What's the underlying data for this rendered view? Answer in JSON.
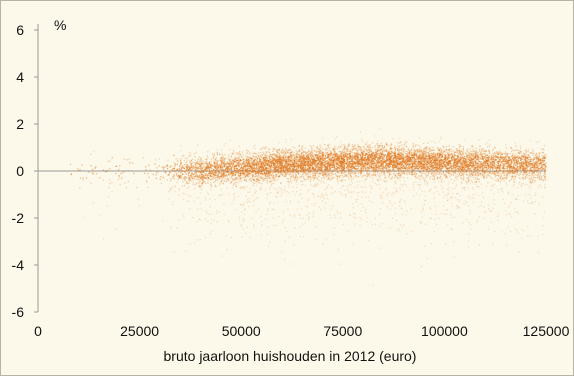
{
  "chart_data": {
    "type": "scatter",
    "title": "",
    "xlabel": "bruto jaarloon huishouden in 2012 (euro)",
    "ylabel": "%",
    "xlim": [
      0,
      125000
    ],
    "ylim": [
      -6,
      6
    ],
    "xticks": [
      0,
      25000,
      50000,
      75000,
      100000,
      125000
    ],
    "yticks": [
      6,
      4,
      2,
      0,
      -2,
      -4,
      -6
    ],
    "grid": false,
    "reference_line_y": 0,
    "series": [
      {
        "color": "#e07a22",
        "point_count_approx": 9000,
        "x_range": [
          8000,
          125000
        ],
        "y_range": [
          -5,
          1.8
        ],
        "trend": [
          {
            "x": 10000,
            "y": 0.0
          },
          {
            "x": 25000,
            "y": 0.0
          },
          {
            "x": 40000,
            "y": 0.0
          },
          {
            "x": 50000,
            "y": 0.15
          },
          {
            "x": 62000,
            "y": 0.3
          },
          {
            "x": 75000,
            "y": 0.4
          },
          {
            "x": 85000,
            "y": 0.45
          },
          {
            "x": 95000,
            "y": 0.4
          },
          {
            "x": 110000,
            "y": 0.3
          },
          {
            "x": 125000,
            "y": 0.25
          }
        ]
      }
    ]
  }
}
